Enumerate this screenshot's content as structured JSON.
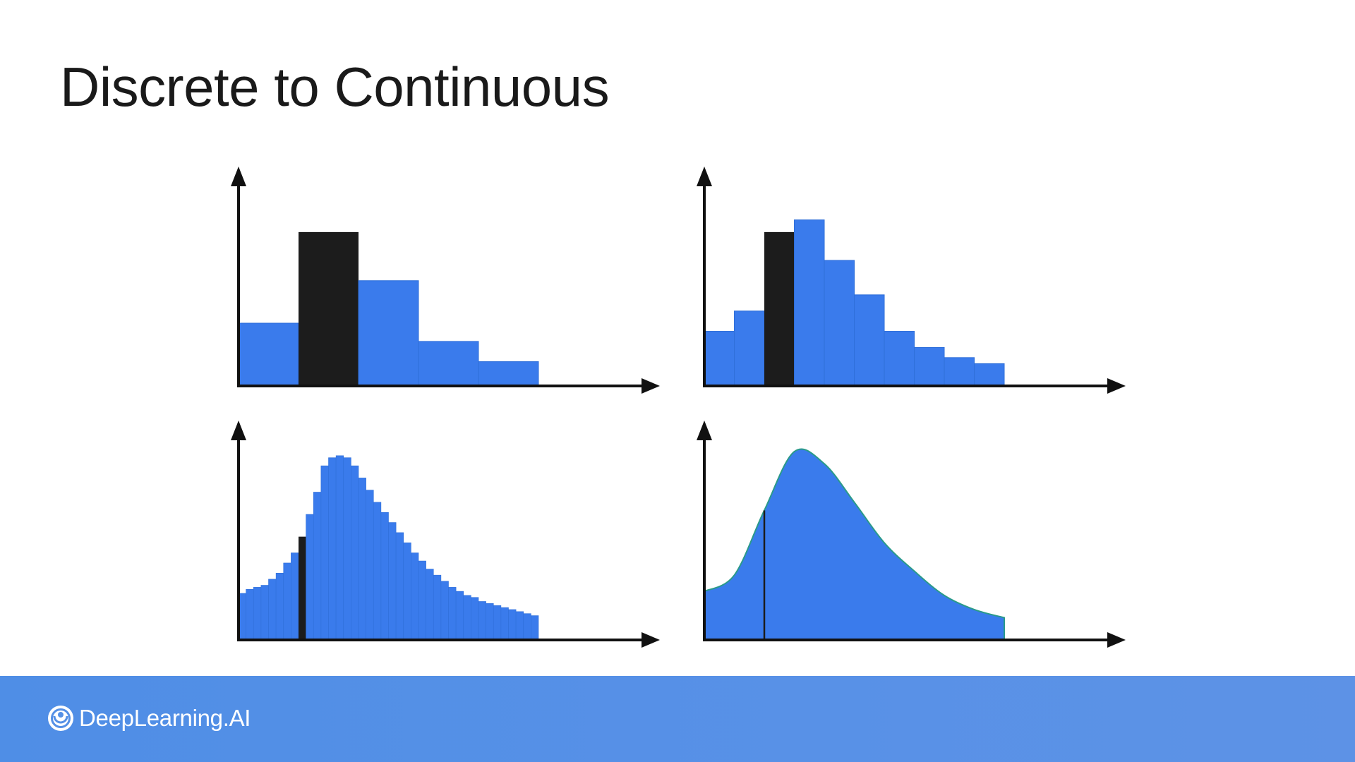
{
  "slide": {
    "title": "Discrete to Continuous"
  },
  "colors": {
    "bar_fill": "#3a7bec",
    "highlight": "#1c1c1c",
    "axis": "#111111",
    "footer": "#5590e6",
    "outline": "#2a9a8a"
  },
  "footer": {
    "brand_name": "DeepLearning.AI",
    "brand_icon": "deeplearning-ai-logo-icon"
  },
  "chart_data": [
    {
      "type": "bar",
      "title": "",
      "values": [
        31,
        76,
        52,
        22,
        12
      ],
      "highlight_index": 1,
      "ylim": [
        0,
        100
      ]
    },
    {
      "type": "bar",
      "title": "",
      "values": [
        27,
        37,
        76,
        82,
        62,
        45,
        27,
        19,
        14,
        11
      ],
      "highlight_index": 2,
      "ylim": [
        0,
        100
      ]
    },
    {
      "type": "bar",
      "title": "",
      "values": [
        23,
        25,
        26,
        27,
        30,
        33,
        38,
        43,
        51,
        62,
        73,
        86,
        90,
        91,
        90,
        86,
        80,
        74,
        68,
        63,
        58,
        53,
        48,
        43,
        39,
        35,
        32,
        29,
        26,
        24,
        22,
        21,
        19,
        18,
        17,
        16,
        15,
        14,
        13,
        12
      ],
      "highlight_index": 8,
      "ylim": [
        0,
        100
      ]
    },
    {
      "type": "area",
      "title": "",
      "x": [
        0,
        1,
        2,
        3,
        4,
        5,
        6,
        7,
        8,
        9,
        10
      ],
      "values": [
        24,
        32,
        64,
        93,
        87,
        68,
        48,
        34,
        22,
        15,
        11
      ],
      "highlight_x": 2,
      "xlim": [
        0,
        10
      ],
      "ylim": [
        0,
        100
      ]
    }
  ]
}
